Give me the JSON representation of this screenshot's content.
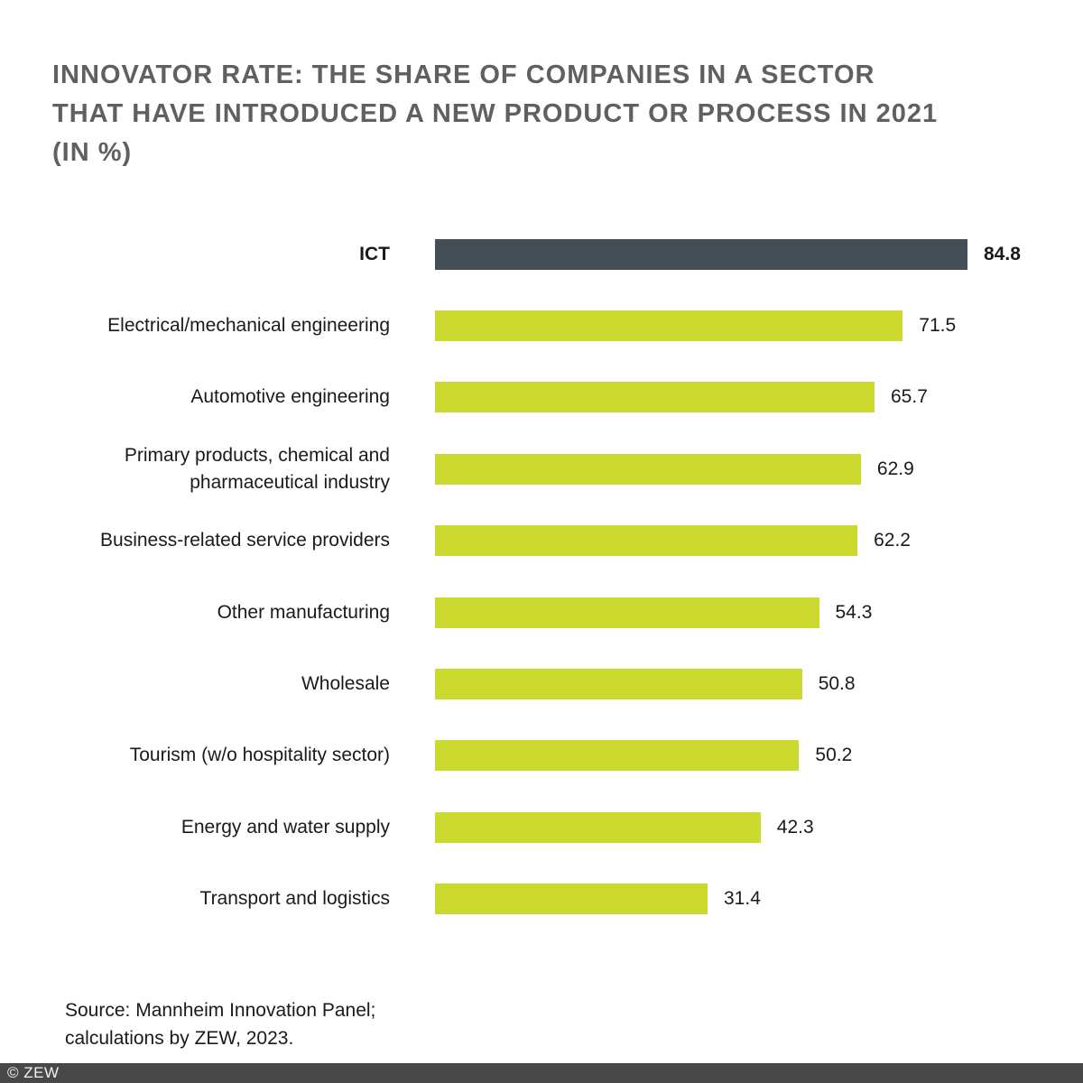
{
  "title": {
    "line1": "INNOVATOR RATE: THE SHARE OF COMPANIES IN A SECTOR",
    "line2": "THAT HAVE INTRODUCED A NEW PRODUCT OR PROCESS IN 2021",
    "line3": "(IN %)"
  },
  "chart_data": {
    "type": "bar",
    "orientation": "horizontal",
    "title": "Innovator rate: the share of companies in a sector that have introduced a new product or process in 2021 (in %)",
    "categories": [
      "ICT",
      "Electrical/mechanical engineering",
      "Automotive engineering",
      "Primary products, chemical and pharmaceutical industry",
      "Business-related service providers",
      "Other manufacturing",
      "Wholesale",
      "Tourism (w/o hospitality sector)",
      "Energy and water supply",
      "Transport and logistics"
    ],
    "values": [
      84.8,
      71.5,
      65.7,
      62.9,
      62.2,
      54.3,
      50.8,
      50.2,
      42.3,
      31.4
    ],
    "value_labels": [
      "84.8",
      "71.5",
      "65.7",
      "62.9",
      "62.2",
      "54.3",
      "50.8",
      "50.2",
      "42.3",
      "31.4"
    ],
    "highlight_index": 0,
    "bar_color_default": "#ccd92e",
    "bar_color_highlight": "#434e57",
    "xlim": [
      0,
      100
    ],
    "grid": false,
    "legend": false,
    "axis_labels_shown": false
  },
  "source": {
    "line1": "Source: Mannheim Innovation Panel;",
    "line2": "calculations by ZEW, 2023."
  },
  "footer": {
    "copyright": "© ZEW"
  },
  "colors": {
    "title_text": "#606060",
    "body_text": "#1a1a1a",
    "footer_bg": "#484848",
    "footer_text": "#f2f2f2",
    "background": "#ffffff"
  }
}
